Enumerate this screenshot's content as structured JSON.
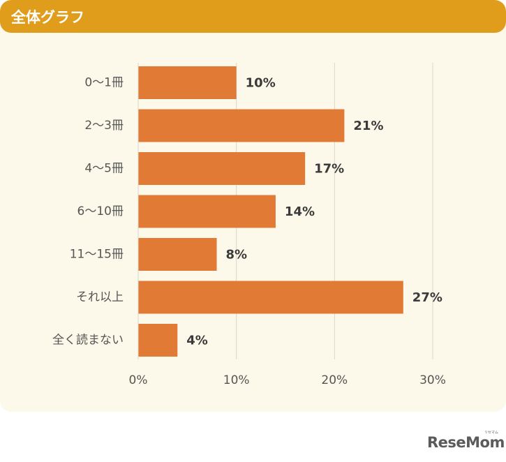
{
  "header": {
    "title": "全体グラフ"
  },
  "colors": {
    "header_bg": "#e09c1b",
    "card_bg": "#fcf9ea",
    "bar": "#e17a35",
    "grid": "#d9d6cc",
    "label_text": "#555555",
    "value_text": "#3a3a3a"
  },
  "chart_data": {
    "type": "bar",
    "orientation": "horizontal",
    "title": "全体グラフ",
    "categories": [
      "0〜1冊",
      "2〜3冊",
      "4〜5冊",
      "6〜10冊",
      "11〜15冊",
      "それ以上",
      "全く読まない"
    ],
    "values": [
      10,
      21,
      17,
      14,
      8,
      27,
      4
    ],
    "data_labels": [
      "10%",
      "21%",
      "17%",
      "14%",
      "8%",
      "27%",
      "4%"
    ],
    "xlim": [
      0,
      30
    ],
    "ticks": [
      0,
      10,
      20,
      30
    ],
    "tick_labels": [
      "0%",
      "10%",
      "20%",
      "30%"
    ],
    "xlabel": "",
    "ylabel": "",
    "grid": true
  },
  "logo": {
    "text": "ReseMom",
    "sub": "リセマム"
  }
}
